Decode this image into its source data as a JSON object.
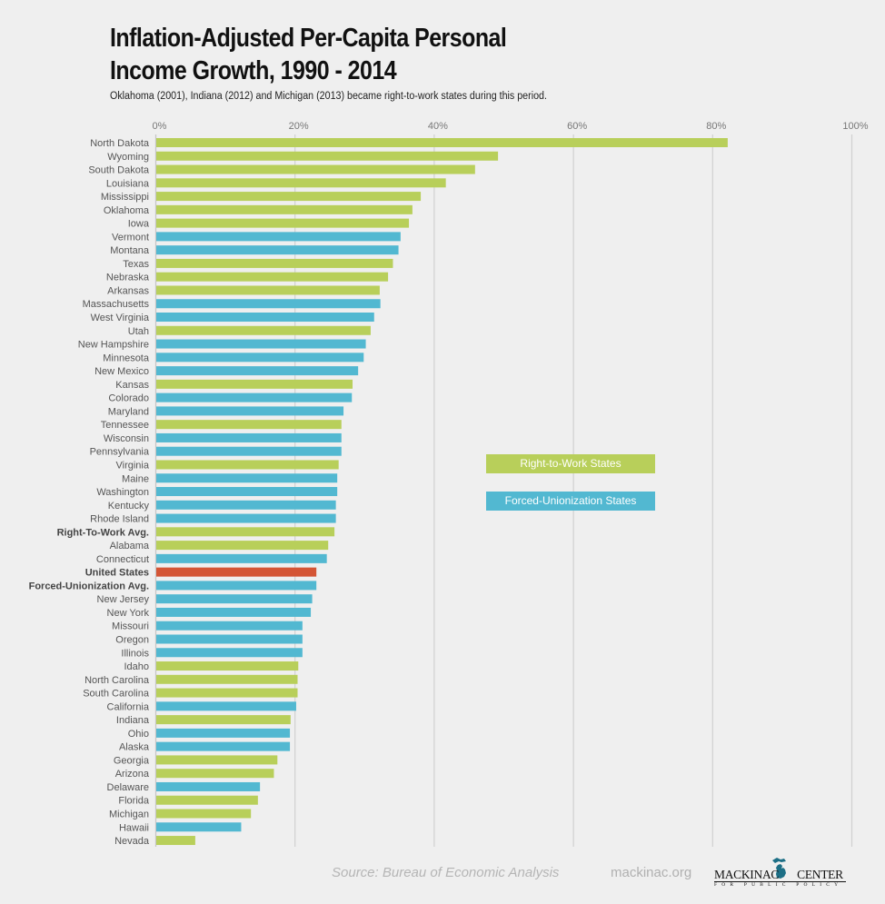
{
  "title_line1": "Inflation-Adjusted Per-Capita Personal",
  "title_line2": "Income Growth, 1990 - 2014",
  "subtitle": "Oklahoma (2001), Indiana (2012) and Michigan (2013) became right-to-work states during this period.",
  "legend": [
    {
      "label": "Right-to-Work States",
      "color": "#b8cf5a"
    },
    {
      "label": "Forced-Unionization States",
      "color": "#52b8d1"
    }
  ],
  "footer": {
    "source": "Source: Bureau of Economic Analysis",
    "site": "mackinac.org",
    "logo_main_left": "MACKINAC",
    "logo_main_right": "CENTER",
    "logo_sub": "FOR PUBLIC POLICY",
    "logo_icon": "michigan-map-icon"
  },
  "colors": {
    "right_to_work": "#b8cf5a",
    "forced_unionization": "#52b8d1",
    "united_states": "#d45535"
  },
  "chart_data": {
    "type": "bar",
    "orientation": "horizontal",
    "title": "Inflation-Adjusted Per-Capita Personal Income Growth, 1990 - 2014",
    "xlabel": "",
    "ylabel": "",
    "xlim": [
      0,
      100
    ],
    "x_ticks": [
      "0%",
      "20%",
      "40%",
      "60%",
      "80%",
      "100%"
    ],
    "x_tick_values": [
      0,
      20,
      40,
      60,
      80,
      100
    ],
    "grid": true,
    "legend_position": "center-right",
    "unit": "%",
    "categories": [
      "North Dakota",
      "Wyoming",
      "South Dakota",
      "Louisiana",
      "Mississippi",
      "Oklahoma",
      "Iowa",
      "Vermont",
      "Montana",
      "Texas",
      "Nebraska",
      "Arkansas",
      "Massachusetts",
      "West Virginia",
      "Utah",
      "New Hampshire",
      "Minnesota",
      "New Mexico",
      "Kansas",
      "Colorado",
      "Maryland",
      "Tennessee",
      "Wisconsin",
      "Pennsylvania",
      "Virginia",
      "Maine",
      "Washington",
      "Kentucky",
      "Rhode Island",
      "Right-To-Work Avg.",
      "Alabama",
      "Connecticut",
      "United States",
      "Forced-Unionization Avg.",
      "New Jersey",
      "New York",
      "Missouri",
      "Oregon",
      "Illinois",
      "Idaho",
      "North Carolina",
      "South Carolina",
      "California",
      "Indiana",
      "Ohio",
      "Alaska",
      "Georgia",
      "Arizona",
      "Delaware",
      "Florida",
      "Michigan",
      "Hawaii",
      "Nevada"
    ],
    "values": [
      82.1,
      49.1,
      45.8,
      41.6,
      38.0,
      36.8,
      36.3,
      35.1,
      34.8,
      34.0,
      33.3,
      32.1,
      32.2,
      31.3,
      30.8,
      30.1,
      29.8,
      29.0,
      28.2,
      28.1,
      26.9,
      26.6,
      26.6,
      26.6,
      26.2,
      26.0,
      26.0,
      25.8,
      25.8,
      25.6,
      24.7,
      24.5,
      23.0,
      23.0,
      22.4,
      22.2,
      21.0,
      21.0,
      21.0,
      20.4,
      20.3,
      20.3,
      20.1,
      19.3,
      19.2,
      19.2,
      17.4,
      16.9,
      14.9,
      14.6,
      13.6,
      12.2,
      5.6
    ],
    "groups": [
      "rtw",
      "rtw",
      "rtw",
      "rtw",
      "rtw",
      "rtw",
      "rtw",
      "fu",
      "fu",
      "rtw",
      "rtw",
      "rtw",
      "fu",
      "fu",
      "rtw",
      "fu",
      "fu",
      "fu",
      "rtw",
      "fu",
      "fu",
      "rtw",
      "fu",
      "fu",
      "rtw",
      "fu",
      "fu",
      "fu",
      "fu",
      "rtw",
      "rtw",
      "fu",
      "us",
      "fu",
      "fu",
      "fu",
      "fu",
      "fu",
      "fu",
      "rtw",
      "rtw",
      "rtw",
      "fu",
      "rtw",
      "fu",
      "fu",
      "rtw",
      "rtw",
      "fu",
      "rtw",
      "rtw",
      "fu",
      "rtw"
    ],
    "bold_categories": [
      "Right-To-Work Avg.",
      "United States",
      "Forced-Unionization Avg."
    ]
  }
}
